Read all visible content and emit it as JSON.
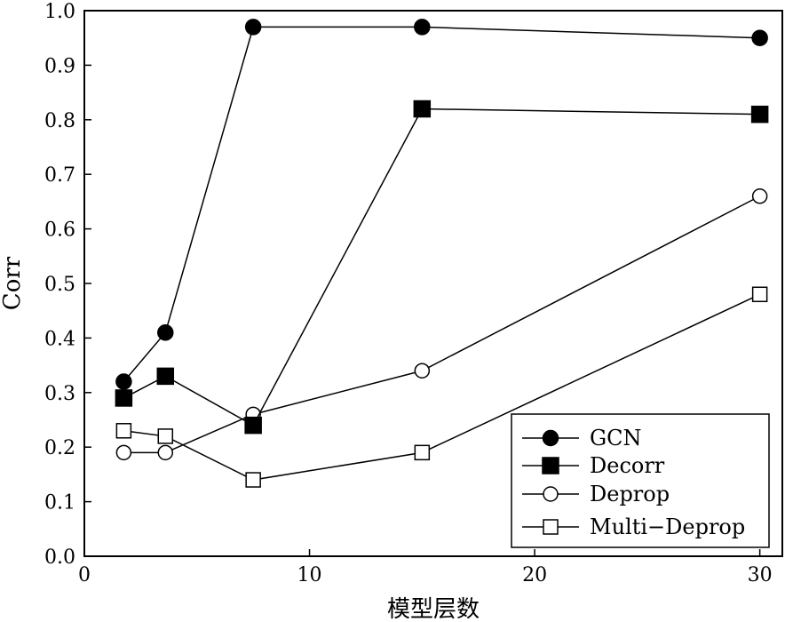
{
  "chart_data": {
    "type": "line",
    "title": "",
    "xlabel": "模型层数",
    "ylabel": "Corr",
    "xlim": [
      0,
      31
    ],
    "ylim": [
      0.0,
      1.0
    ],
    "xticks": [
      0,
      10,
      20,
      30
    ],
    "xtick_labels": [
      "0",
      "10",
      "20",
      "30"
    ],
    "yticks": [
      0.0,
      0.1,
      0.2,
      0.3,
      0.4,
      0.5,
      0.6,
      0.7,
      0.8,
      0.9,
      1.0
    ],
    "ytick_labels": [
      "0.0",
      "0.1",
      "0.2",
      "0.3",
      "0.4",
      "0.5",
      "0.6",
      "0.7",
      "0.8",
      "0.9",
      "1.0"
    ],
    "grid": false,
    "legend_position": "bottom-right",
    "x": [
      1.75,
      3.6,
      7.5,
      15,
      30
    ],
    "series": [
      {
        "name": "GCN",
        "marker": "filled-circle",
        "values": [
          0.32,
          0.41,
          0.97,
          0.97,
          0.95
        ]
      },
      {
        "name": "Decorr",
        "marker": "filled-square",
        "values": [
          0.29,
          0.33,
          0.24,
          0.82,
          0.81
        ]
      },
      {
        "name": "Deprop",
        "marker": "open-circle",
        "values": [
          0.19,
          0.19,
          0.26,
          0.34,
          0.66
        ]
      },
      {
        "name": "Multi−Deprop",
        "marker": "open-square",
        "values": [
          0.23,
          0.22,
          0.14,
          0.19,
          0.48
        ]
      }
    ],
    "colors": {
      "line": "#000000",
      "background": "#ffffff"
    }
  }
}
